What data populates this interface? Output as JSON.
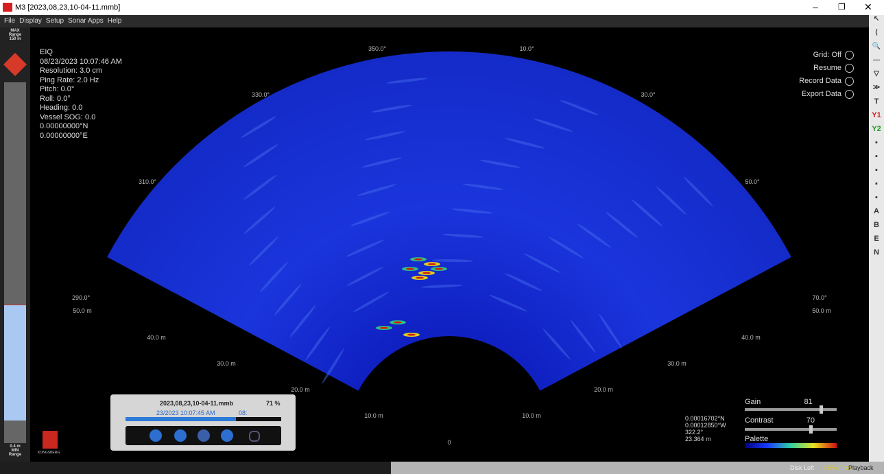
{
  "window": {
    "title": "M3 [2023,08,23,10-04-11.mmb]"
  },
  "menu": [
    "File",
    "Display",
    "Setup",
    "Sonar Apps",
    "Help"
  ],
  "range_panel": {
    "max": [
      "MAX",
      "Range",
      "150 m"
    ],
    "min": [
      "0.4 m",
      "MIN",
      "Range"
    ]
  },
  "info": [
    "EIQ",
    "08/23/2023 10:07:46 AM",
    "Resolution: 3.0 cm",
    "Ping Rate: 2.0 Hz",
    "Pitch:  0.0°",
    "Roll:  0.0°",
    "Heading: 0.0",
    "Vessel SOG: 0.0",
    "0.00000000°N",
    "0.00000000°E"
  ],
  "angles": [
    "350.0°",
    "10.0°",
    "330.0°",
    "30.0°",
    "310.0°",
    "50.0°",
    "290.0°",
    "70.0°"
  ],
  "ranges": [
    "50.0 m",
    "50.0 m",
    "40.0 m",
    "40.0 m",
    "30.0 m",
    "30.0 m",
    "20.0 m",
    "20.0 m",
    "10.0 m",
    "10.0 m",
    "0"
  ],
  "controls": [
    "Grid: Off",
    "Resume",
    "Record Data",
    "Export Data"
  ],
  "playback": {
    "file": "2023,08,23,10-04-11.mmb",
    "percent": "71 %",
    "time": "23/2023 10:07:45 AM",
    "time_tail": "08:"
  },
  "position": [
    "0.00016702°N",
    "0.00012850°W",
    "322.2°",
    "23.364 m"
  ],
  "sliders": {
    "gain_label": "Gain",
    "gain": 81,
    "contrast_label": "Contrast",
    "contrast": 70,
    "palette_label": "Palette"
  },
  "logo": "KONGSBERG",
  "toolbar": [
    "T",
    "Y1",
    "Y2",
    "A",
    "B",
    "E",
    "N"
  ],
  "status": [
    "Disk Left",
    "7.5% Free",
    "Playback"
  ]
}
